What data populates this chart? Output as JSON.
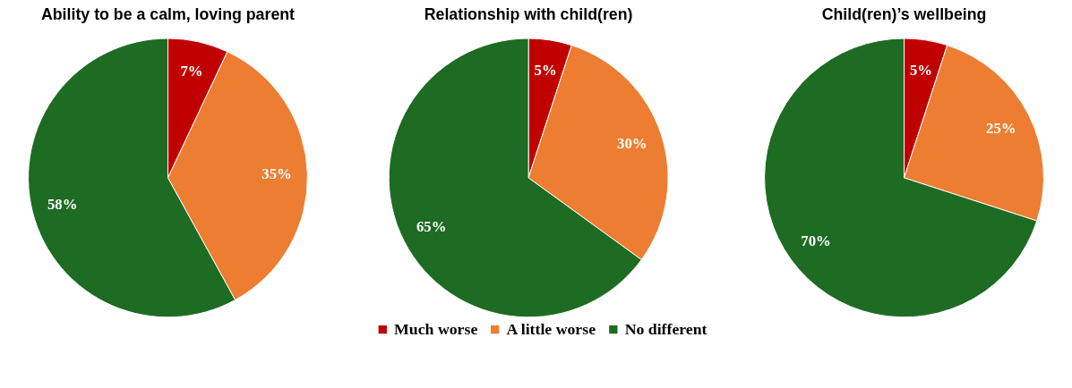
{
  "chart_data": [
    {
      "type": "pie",
      "title": "Ability to be a calm, loving parent",
      "categories": [
        null,
        null,
        null
      ],
      "values": [
        7,
        35,
        58
      ],
      "colors": [
        "#c00000",
        "#ed7d31",
        "#1e6b23"
      ],
      "value_labels": [
        "7%",
        "35%",
        "58%"
      ]
    },
    {
      "type": "pie",
      "title": "Relationship with child(ren)",
      "categories": [
        "Much worse",
        "A little worse",
        "No different"
      ],
      "values": [
        5,
        30,
        65
      ],
      "colors": [
        "#c00000",
        "#ed7d31",
        "#1e6b23"
      ],
      "value_labels": [
        "5%",
        "30%",
        "65%"
      ],
      "legend": "bottom"
    },
    {
      "type": "pie",
      "title": "Child(ren)’s wellbeing",
      "categories": [
        null,
        null,
        null
      ],
      "values": [
        5,
        25,
        70
      ],
      "colors": [
        "#c00000",
        "#ed7d31",
        "#1e6b23"
      ],
      "value_labels": [
        "5%",
        "25%",
        "70%"
      ]
    }
  ]
}
